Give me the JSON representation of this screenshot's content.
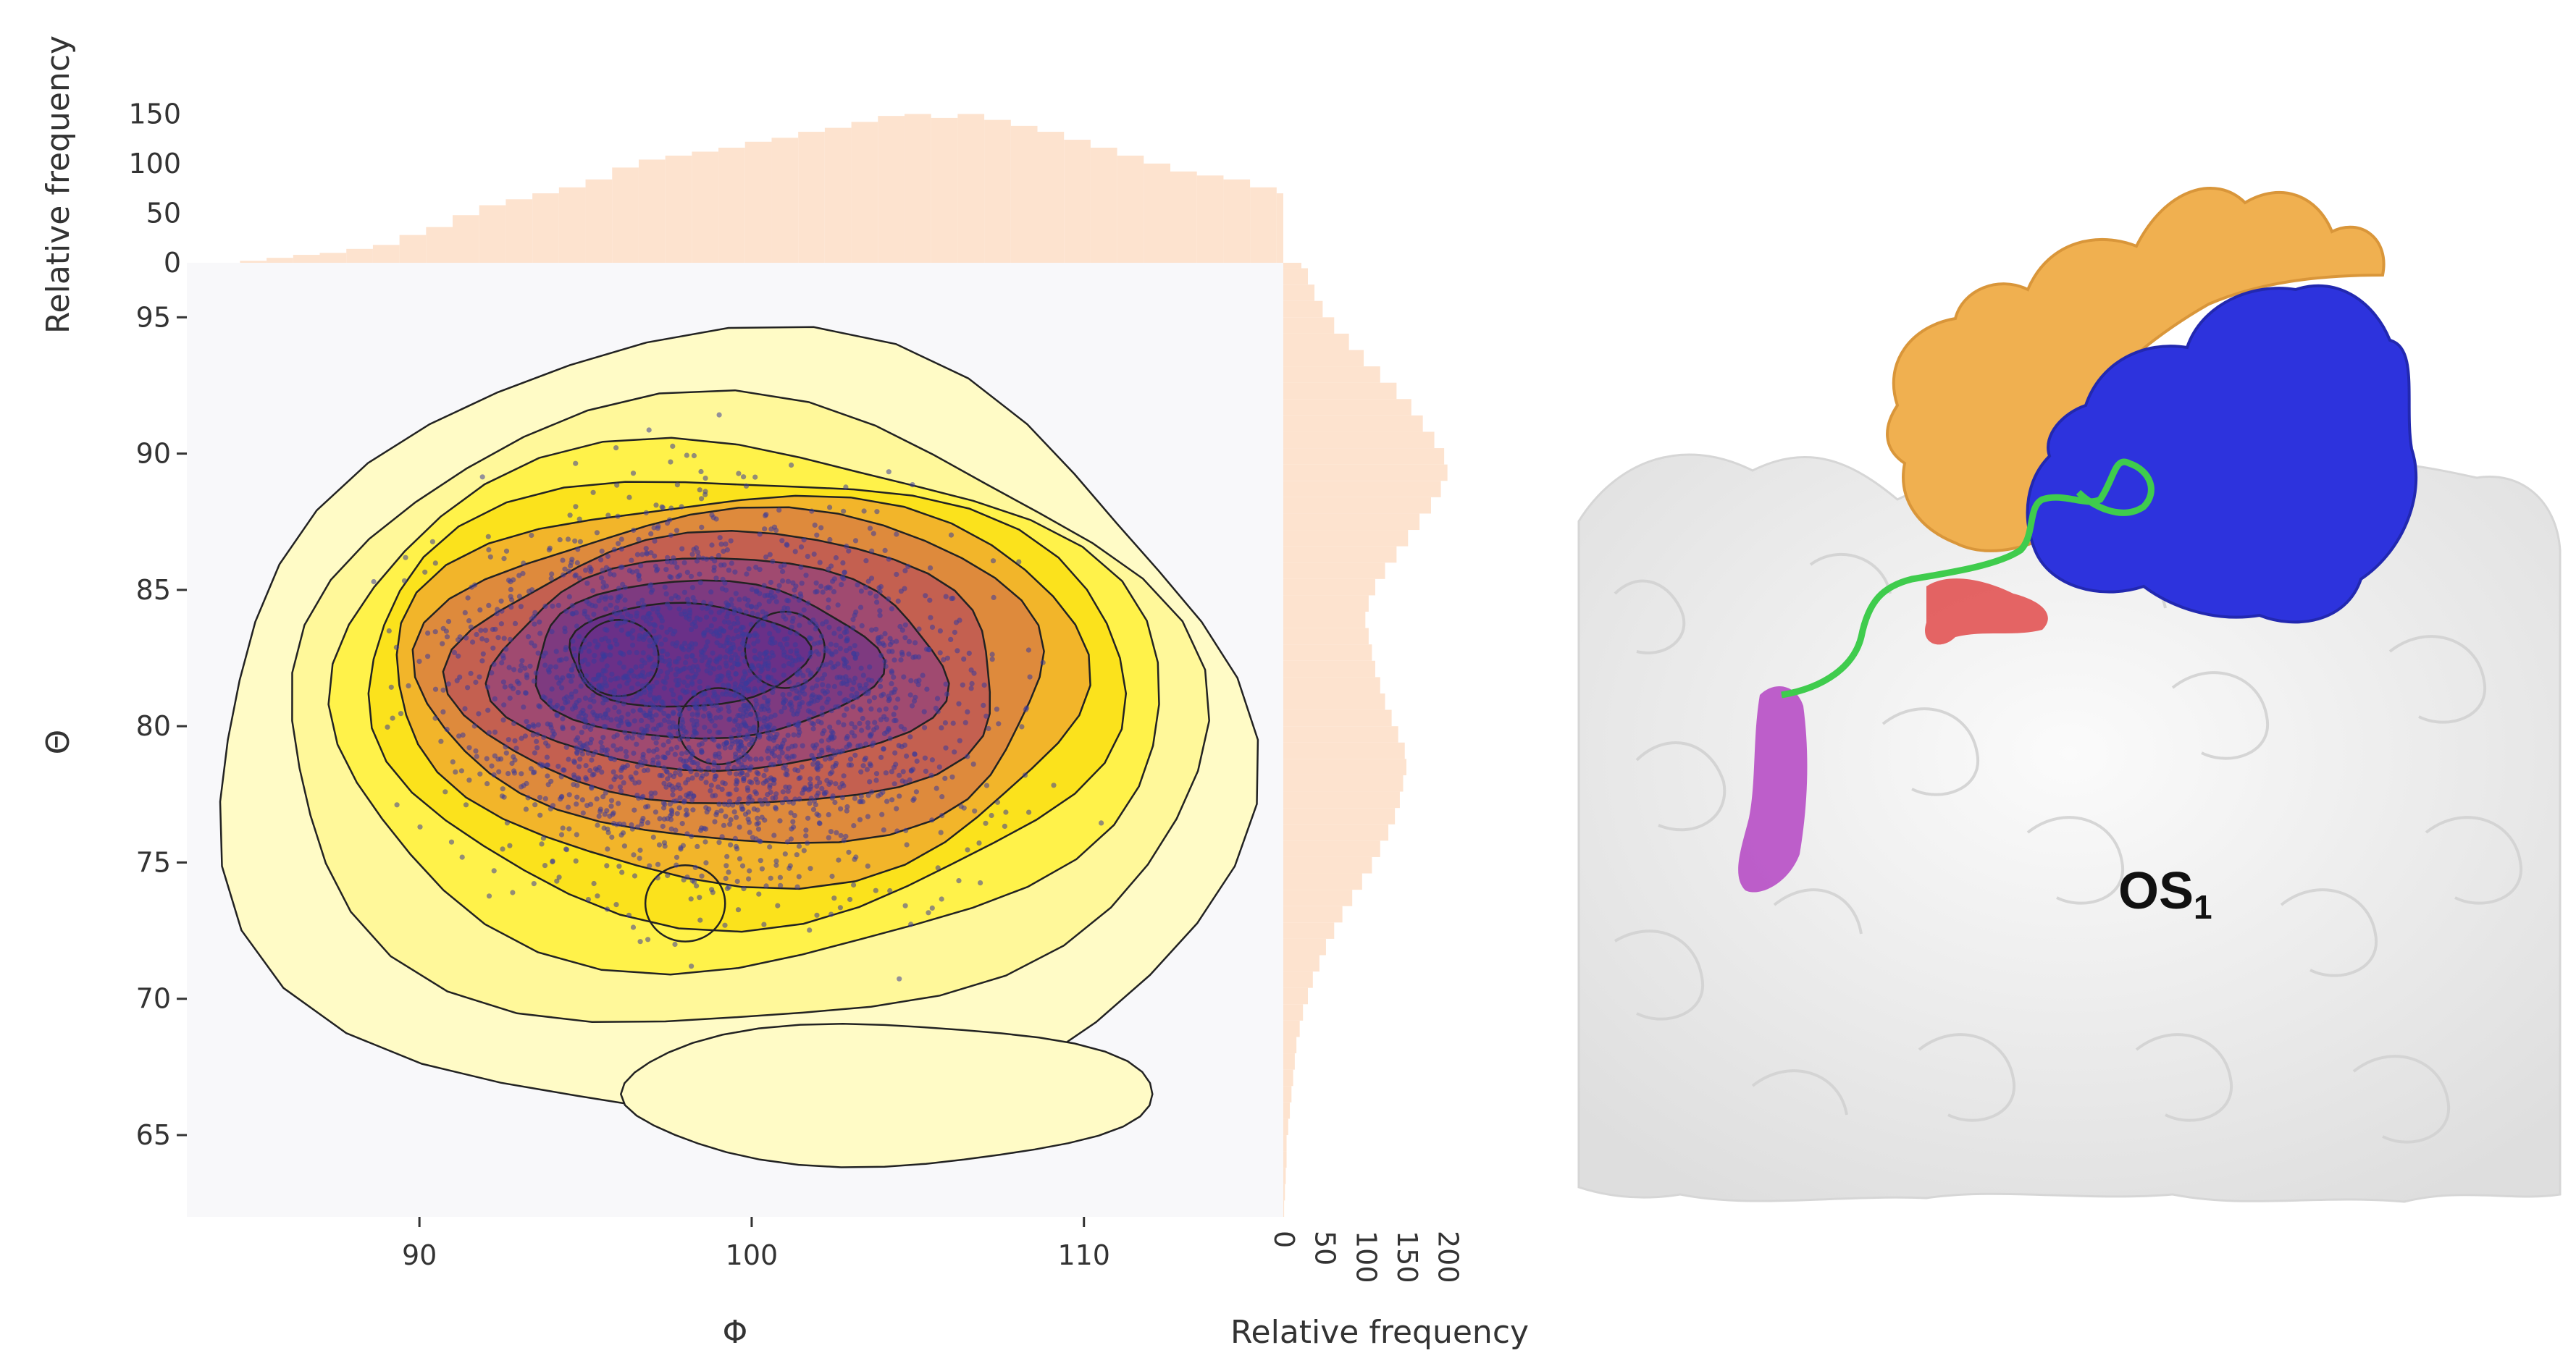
{
  "chart_data": {
    "type": "scatter",
    "subtype": "joint density plot with marginal histograms",
    "xlabel": "Φ",
    "ylabel": "Θ",
    "xlim": [
      83,
      116
    ],
    "ylim": [
      62,
      97
    ],
    "x_ticks": [
      90,
      100,
      110
    ],
    "y_ticks": [
      65,
      70,
      75,
      80,
      85,
      90,
      95
    ],
    "grid": false,
    "density_contours": true,
    "density_peak": {
      "phi": 96,
      "theta": 82.5
    },
    "secondary_peaks": [
      {
        "phi": 101,
        "theta": 82.8
      },
      {
        "phi": 99,
        "theta": 80
      },
      {
        "phi": 98,
        "theta": 73.5
      }
    ],
    "point_color": "#3a3a9a",
    "contour_fill_low": "#fffcc8",
    "contour_fill_mid": "#fff000",
    "contour_fill_high": "#6b2d80",
    "top_histogram": {
      "ylabel": "Relative frequency",
      "y_ticks": [
        0,
        50,
        100,
        150
      ],
      "ylim": [
        0,
        170
      ],
      "bin_width": 0.8,
      "x_start": 83,
      "values": [
        0,
        0,
        2,
        5,
        8,
        10,
        14,
        18,
        28,
        36,
        48,
        58,
        64,
        70,
        76,
        84,
        96,
        104,
        108,
        112,
        116,
        122,
        126,
        132,
        136,
        142,
        148,
        150,
        146,
        150,
        144,
        138,
        132,
        124,
        116,
        108,
        100,
        92,
        88,
        84,
        76,
        70,
        64,
        58,
        52,
        44,
        36,
        26,
        20,
        14,
        10,
        6,
        4,
        2,
        0,
        0,
        0,
        0,
        0,
        0,
        0
      ],
      "color": "#fde3cf"
    },
    "right_histogram": {
      "xlabel": "Relative frequency",
      "x_ticks": [
        0,
        50,
        100,
        150,
        200
      ],
      "xlim": [
        0,
        210
      ],
      "bin_width": 0.6,
      "y_start": 62,
      "values": [
        1,
        2,
        3,
        4,
        4,
        6,
        8,
        10,
        12,
        14,
        16,
        20,
        24,
        30,
        36,
        44,
        52,
        62,
        72,
        84,
        96,
        108,
        118,
        128,
        136,
        142,
        146,
        150,
        148,
        140,
        132,
        124,
        118,
        112,
        108,
        104,
        100,
        104,
        112,
        124,
        138,
        152,
        166,
        180,
        192,
        200,
        196,
        184,
        170,
        156,
        138,
        118,
        98,
        80,
        62,
        48,
        38,
        30,
        22,
        14
      ]
    },
    "annotation": {
      "text": "OS",
      "subscript": "1"
    },
    "colors": {
      "orange_domain": "#f0b050",
      "blue_domain": "#2d33dd",
      "linker": "#3fcc4d",
      "red_residues": "#e04040",
      "magenta_residues": "#b03ac0",
      "surface": "#f0f0f0"
    }
  }
}
